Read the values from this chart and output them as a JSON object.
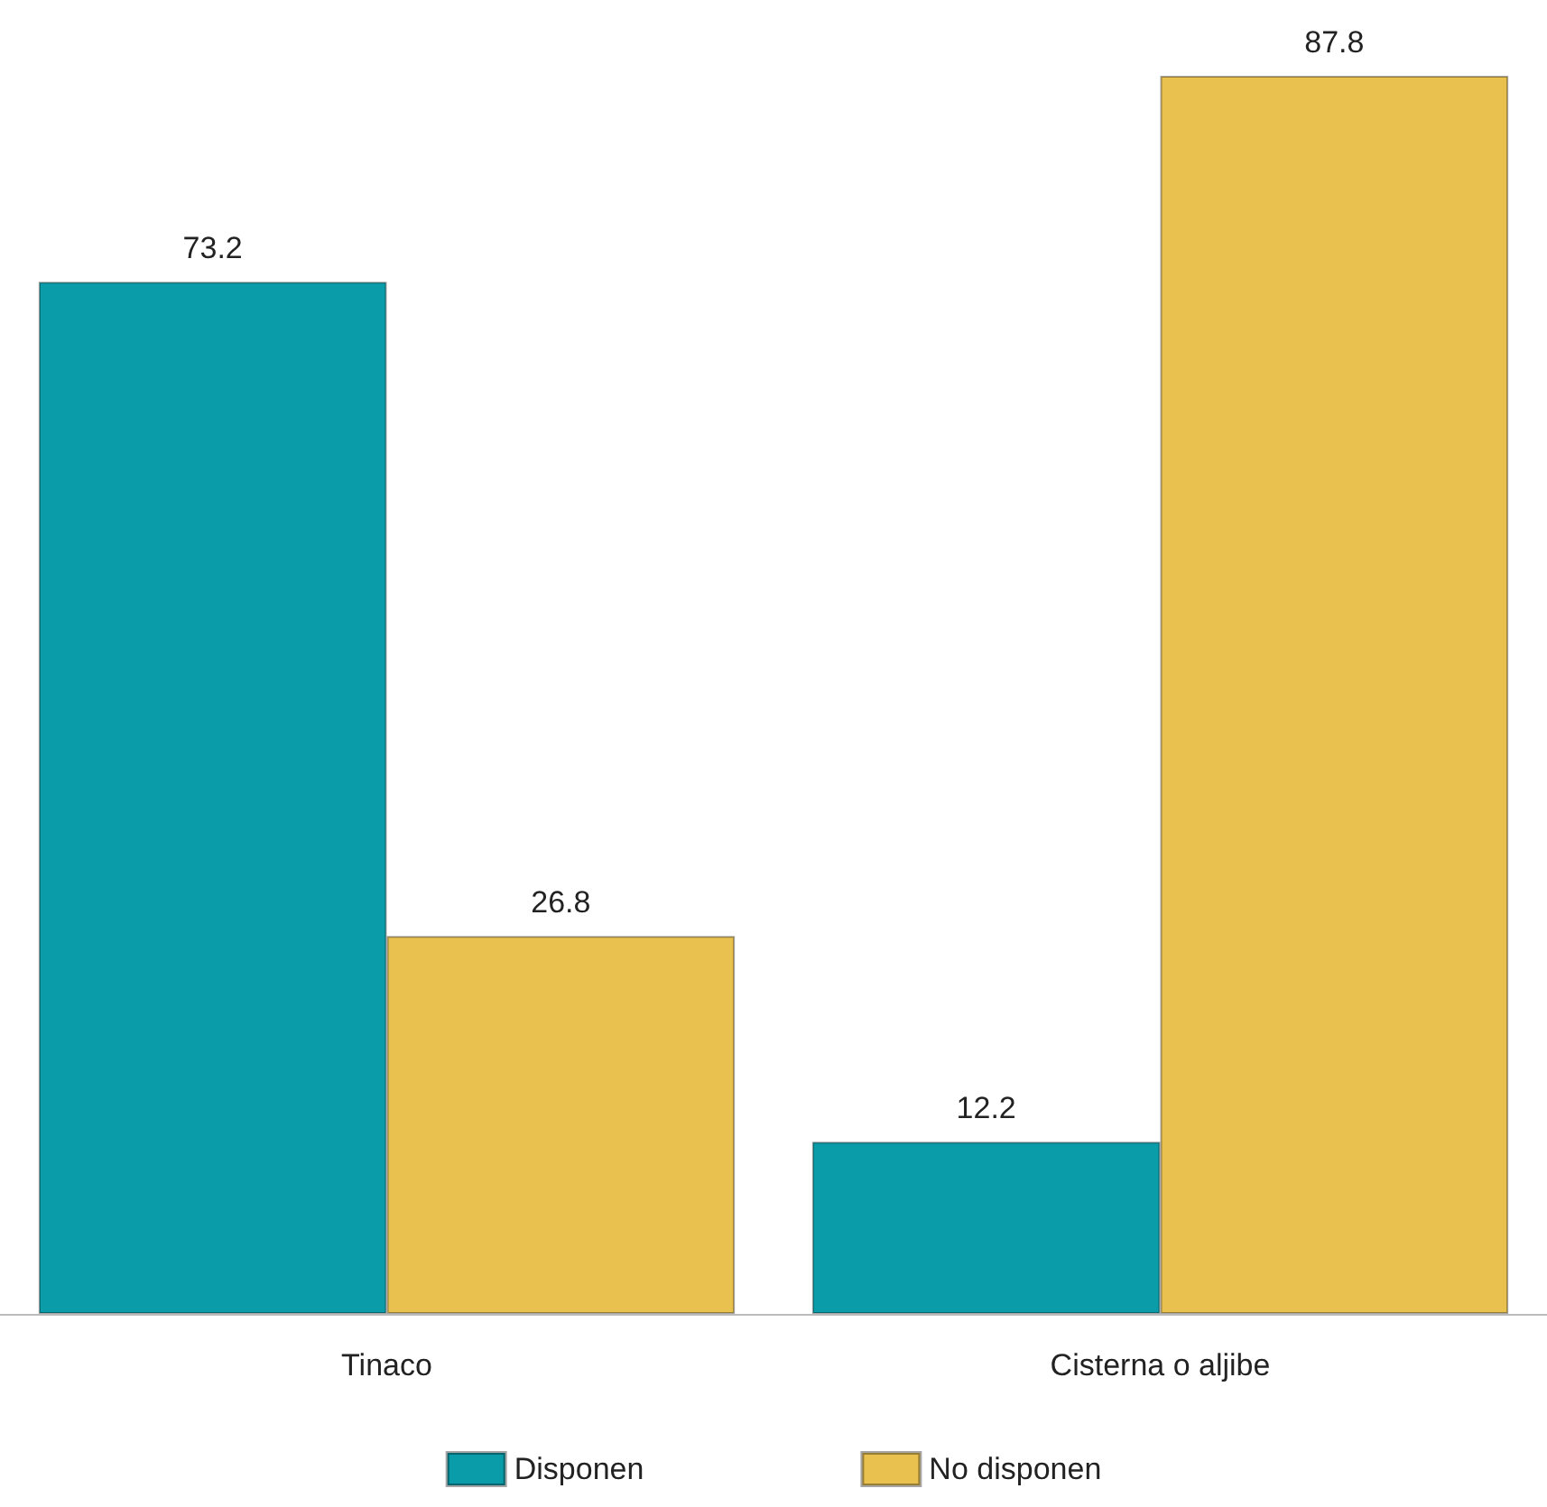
{
  "chart_data": {
    "type": "bar",
    "categories": [
      "Tinaco",
      "Cisterna o aljibe"
    ],
    "series": [
      {
        "name": "Disponen",
        "color": "#0a9ca8",
        "values": [
          73.2,
          12.2
        ]
      },
      {
        "name": "No disponen",
        "color": "#e9c14f",
        "values": [
          26.8,
          87.8
        ]
      }
    ],
    "data_labels": true,
    "legend": "bottom"
  }
}
